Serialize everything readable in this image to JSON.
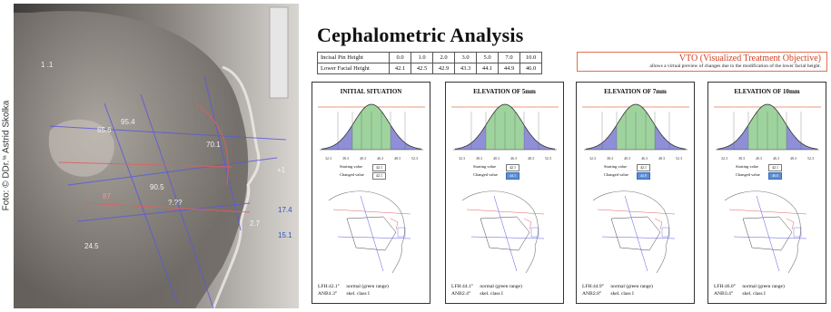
{
  "photo_credit": "Foto: © DDr.ⁱⁿ Astrid Skolka",
  "xray_labels": [
    "1 .1",
    "95.4",
    "65.6",
    "70.1",
    "90.5",
    "87",
    "?.?? ",
    "17.4",
    "15.1",
    "2.7",
    "24.5",
    "+1"
  ],
  "title": "Cephalometric Analysis",
  "heights_table": {
    "rows": [
      {
        "label": "Incisal Pin Height",
        "values": [
          "0.0",
          "1.0",
          "2.0",
          "3.0",
          "5.0",
          "7.0",
          "10.0"
        ]
      },
      {
        "label": "Lower Facial Height",
        "values": [
          "42.1",
          "42.5",
          "42.9",
          "43.3",
          "44.1",
          "44.9",
          "46.0"
        ]
      }
    ]
  },
  "vto": {
    "title": "VTO (Visualized Treatment Objective)",
    "description": "allows a virtual preview of changes due to the modification of the lower facial height."
  },
  "panels": [
    {
      "title": "INITIAL SITUATION",
      "starting_label": "Starting value",
      "starting_value": "42.1",
      "changed_label": "Changed value",
      "changed_value": "42.1",
      "lfh_key": "LFH:",
      "lfh_value": "42.1°",
      "lfh_note": "normal (green range)",
      "anb_key": "ANB:",
      "anb_value": "1.3°",
      "anb_note": "skel. class I"
    },
    {
      "title": "ELEVATION OF 5mm",
      "starting_label": "Starting value",
      "starting_value": "42.1",
      "changed_label": "Changed value",
      "changed_value": "44.1",
      "lfh_key": "LFH:",
      "lfh_value": "44.1°",
      "lfh_note": "normal (green range)",
      "anb_key": "ANB:",
      "anb_value": "2.4°",
      "anb_note": "skel. class I"
    },
    {
      "title": "ELEVATION OF 7mm",
      "starting_label": "Starting value",
      "starting_value": "42.1",
      "changed_label": "Changed value",
      "changed_value": "44.9",
      "lfh_key": "LFH:",
      "lfh_value": "44.9°",
      "lfh_note": "normal (green range)",
      "anb_key": "ANB:",
      "anb_value": "2.8°",
      "anb_note": "skel. class I"
    },
    {
      "title": "ELEVATION OF 10mm",
      "starting_label": "Starting value",
      "starting_value": "42.1",
      "changed_label": "Changed value",
      "changed_value": "46.0",
      "lfh_key": "LFH:",
      "lfh_value": "46.0°",
      "lfh_note": "normal (green range)",
      "anb_key": "ANB:",
      "anb_value": "3.4°",
      "anb_note": "skel. class I"
    }
  ],
  "bell_ticks": [
    "32.3",
    "38.3",
    "40.3",
    "46.3",
    "48.3",
    "52.3"
  ],
  "colors": {
    "tails": "#8f8fd8",
    "normal": "#9ed39e",
    "curve": "#333333",
    "baseline": "#e07050",
    "highlight": "#5b8fd6",
    "vto_border": "#e07050"
  }
}
